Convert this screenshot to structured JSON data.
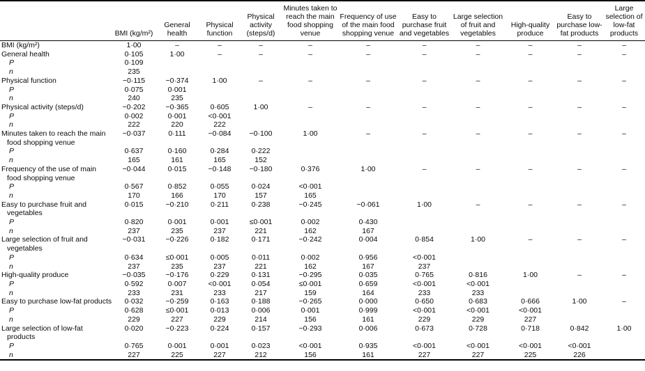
{
  "table": {
    "corner_label": "",
    "sublabels": {
      "p": "P",
      "n": "n"
    },
    "columns": [
      "BMI (kg/m²)",
      "General health",
      "Physical function",
      "Physical activity (steps/d)",
      "Minutes taken to reach the main food shopping venue",
      "Frequency of use of the main food shopping venue",
      "Easy to purchase fruit and vegetables",
      "Large selection of fruit and vegetables",
      "High-quality produce",
      "Easy to purchase low-fat products",
      "Large selection of low-fat products"
    ],
    "rows": [
      {
        "label": "BMI (kg/m²)",
        "r": [
          "1·00",
          "–",
          "–",
          "–",
          "–",
          "–",
          "–",
          "–",
          "–",
          "–",
          "–"
        ]
      },
      {
        "label": "General health",
        "r": [
          "0·105",
          "1·00",
          "–",
          "–",
          "–",
          "–",
          "–",
          "–",
          "–",
          "–",
          "–"
        ],
        "p": [
          "0·109"
        ],
        "n": [
          "235"
        ]
      },
      {
        "label": "Physical function",
        "r": [
          "−0·115",
          "−0·374",
          "1·00",
          "–",
          "–",
          "–",
          "–",
          "–",
          "–",
          "–",
          "–"
        ],
        "p": [
          "0·075",
          "0·001"
        ],
        "n": [
          "240",
          "235"
        ]
      },
      {
        "label": "Physical activity (steps/d)",
        "r": [
          "−0·202",
          "−0·365",
          "0·605",
          "1·00",
          "–",
          "–",
          "–",
          "–",
          "–",
          "–",
          "–"
        ],
        "p": [
          "0·002",
          "0·001",
          "<0·001"
        ],
        "n": [
          "222",
          "220",
          "222"
        ]
      },
      {
        "label": "Minutes taken to reach the main food shopping venue",
        "r": [
          "−0·037",
          "0·111",
          "−0·084",
          "−0·100",
          "1·00",
          "–",
          "–",
          "–",
          "–",
          "–",
          "–"
        ],
        "p": [
          "0·637",
          "0·160",
          "0·284",
          "0·222"
        ],
        "n": [
          "165",
          "161",
          "165",
          "152"
        ]
      },
      {
        "label": "Frequency of the use of main food shopping venue",
        "r": [
          "−0·044",
          "0·015",
          "−0·148",
          "−0·180",
          "0·376",
          "1·00",
          "–",
          "–",
          "–",
          "–",
          "–"
        ],
        "p": [
          "0·567",
          "0·852",
          "0·055",
          "0·024",
          "<0·001"
        ],
        "n": [
          "170",
          "166",
          "170",
          "157",
          "165"
        ]
      },
      {
        "label": "Easy to purchase fruit and vegetables",
        "r": [
          "0·015",
          "−0·210",
          "0·211",
          "0·238",
          "−0·245",
          "−0·061",
          "1·00",
          "–",
          "–",
          "–",
          "–"
        ],
        "p": [
          "0·820",
          "0·001",
          "0·001",
          "≤0·001",
          "0·002",
          "0·430"
        ],
        "n": [
          "237",
          "235",
          "237",
          "221",
          "162",
          "167"
        ]
      },
      {
        "label": "Large selection of fruit and vegetables",
        "r": [
          "−0·031",
          "−0·226",
          "0·182",
          "0·171",
          "−0·242",
          "0·004",
          "0·854",
          "1·00",
          "–",
          "–",
          "–"
        ],
        "p": [
          "0·634",
          "≤0·001",
          "0·005",
          "0·011",
          "0·002",
          "0·956",
          "<0·001"
        ],
        "n": [
          "237",
          "235",
          "237",
          "221",
          "162",
          "167",
          "237"
        ]
      },
      {
        "label": "High-quality produce",
        "r": [
          "−0·035",
          "−0·176",
          "0·229",
          "0·131",
          "−0·295",
          "0·035",
          "0·765",
          "0·816",
          "1·00",
          "–",
          "–"
        ],
        "p": [
          "0·592",
          "0·007",
          "<0·001",
          "0·054",
          "≤0·001",
          "0·659",
          "<0·001",
          "<0·001"
        ],
        "n": [
          "233",
          "231",
          "233",
          "217",
          "159",
          "164",
          "233",
          "233"
        ]
      },
      {
        "label": "Easy to purchase low-fat products",
        "r": [
          "0·032",
          "−0·259",
          "0·163",
          "0·188",
          "−0·265",
          "0·000",
          "0·650",
          "0·683",
          "0·666",
          "1·00",
          "–"
        ],
        "p": [
          "0·628",
          "≤0·001",
          "0·013",
          "0·006",
          "0·001",
          "0·999",
          "<0·001",
          "<0·001",
          "<0·001"
        ],
        "n": [
          "229",
          "227",
          "229",
          "214",
          "156",
          "161",
          "229",
          "229",
          "227"
        ]
      },
      {
        "label": "Large selection of low-fat products",
        "r": [
          "0·020",
          "−0·223",
          "0·224",
          "0·157",
          "−0·293",
          "0·006",
          "0·673",
          "0·728",
          "0·718",
          "0·842",
          "1·00"
        ],
        "p": [
          "0·765",
          "0·001",
          "0·001",
          "0·023",
          "<0·001",
          "0·935",
          "<0·001",
          "<0·001",
          "<0·001",
          "<0·001"
        ],
        "n": [
          "227",
          "225",
          "227",
          "212",
          "156",
          "161",
          "227",
          "227",
          "225",
          "226"
        ]
      }
    ]
  }
}
